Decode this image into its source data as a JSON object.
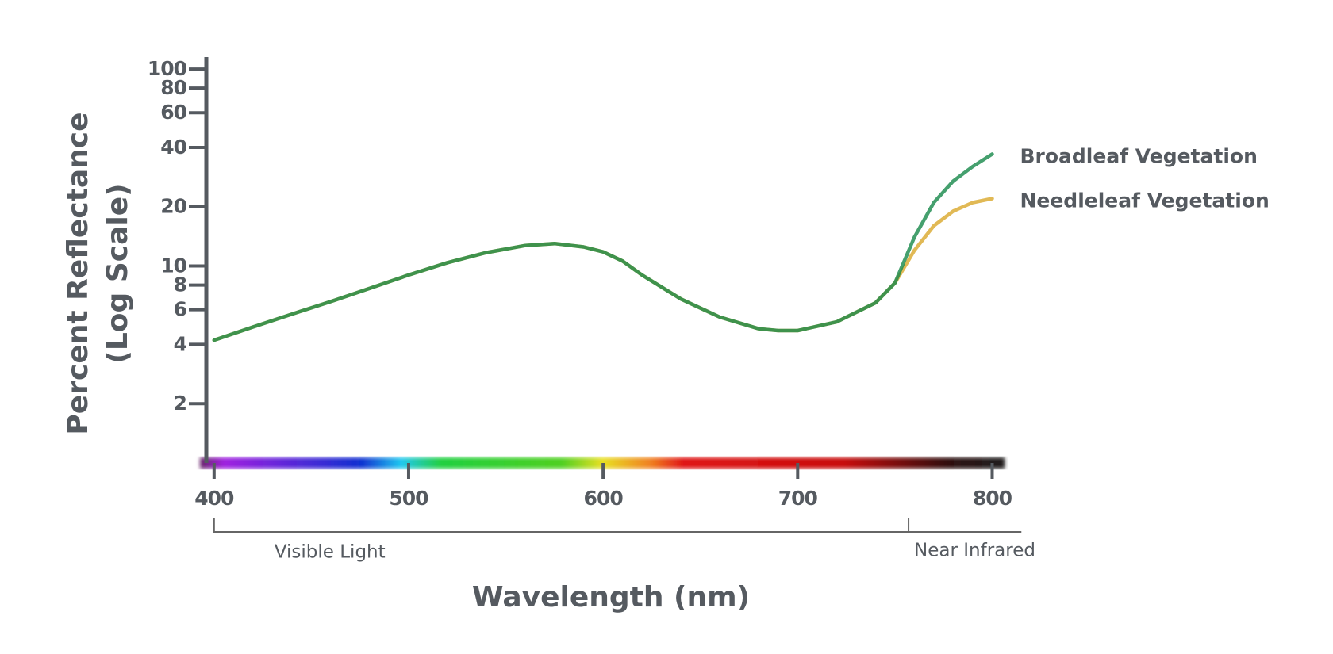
{
  "chart_data": {
    "type": "line",
    "xlabel": "Wavelength (nm)",
    "ylabel": [
      "Percent Reflectance",
      "(Log Scale)"
    ],
    "log_y": true,
    "xlim": [
      396,
      810
    ],
    "ylim": [
      1,
      115
    ],
    "xticks": [
      400,
      500,
      600,
      700,
      800
    ],
    "yticks": [
      2,
      4,
      6,
      8,
      10,
      20,
      40,
      60,
      80,
      100
    ],
    "x": [
      400,
      420,
      440,
      460,
      480,
      500,
      520,
      540,
      560,
      575,
      590,
      600,
      610,
      620,
      640,
      660,
      680,
      690,
      700,
      720,
      740,
      750,
      760,
      770,
      780,
      790,
      800
    ],
    "series": [
      {
        "name": "Needleleaf Vegetation",
        "color": "#d9a82a",
        "values": [
          4.2,
          4.9,
          5.7,
          6.6,
          7.7,
          9,
          10.4,
          11.7,
          12.7,
          13,
          12.5,
          11.8,
          10.6,
          9,
          6.8,
          5.5,
          4.8,
          4.7,
          4.7,
          5.2,
          6.5,
          8.2,
          12,
          16,
          19,
          21,
          22
        ]
      },
      {
        "name": "Broadleaf Vegetation",
        "color": "#16884a",
        "values": [
          4.2,
          4.9,
          5.7,
          6.6,
          7.7,
          9,
          10.4,
          11.7,
          12.7,
          13,
          12.5,
          11.8,
          10.6,
          9,
          6.8,
          5.5,
          4.8,
          4.7,
          4.7,
          5.2,
          6.5,
          8.2,
          14,
          21,
          27,
          32,
          37
        ]
      }
    ],
    "regions": [
      {
        "label": "Visible Light",
        "x": [
          400,
          757
        ]
      },
      {
        "label": "Near Infrared",
        "x": [
          757,
          815
        ]
      }
    ]
  }
}
